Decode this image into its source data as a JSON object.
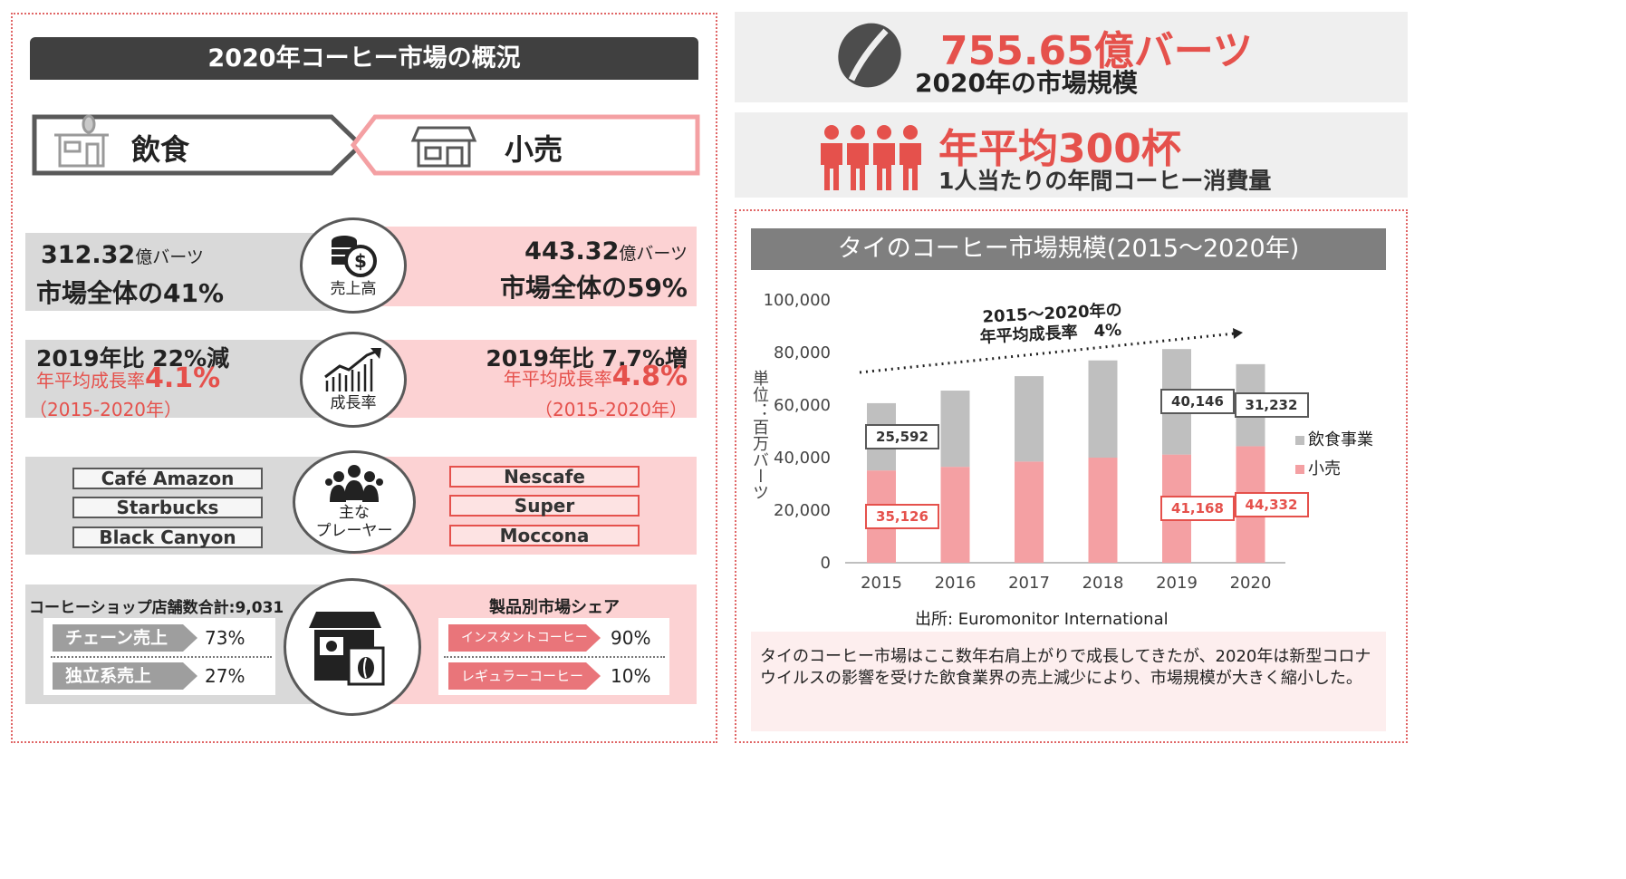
{
  "left_panel": {
    "title": "2020年コーヒー市場の概況",
    "category_food": "飲食",
    "category_retail": "小売",
    "sales": {
      "circle_label": "売上高",
      "food_value": "312.32",
      "food_unit": "億バーツ",
      "food_share": "市場全体の41%",
      "retail_value": "443.32",
      "retail_unit": "億バーツ",
      "retail_share": "市場全体の59%"
    },
    "growth": {
      "circle_label": "成長率",
      "food_yoy": "2019年比 22%減",
      "food_cagr_label": "年平均成長率",
      "food_cagr_value": "4.1%",
      "food_period": "（2015-2020年）",
      "retail_yoy": "2019年比 7.7%増",
      "retail_cagr_label": "年平均成長率",
      "retail_cagr_value": "4.8%",
      "retail_period": "（2015-2020年）"
    },
    "players": {
      "circle_label_1": "主な",
      "circle_label_2": "プレーヤー",
      "food_brands": [
        "Café Amazon",
        "Starbucks",
        "Black Canyon"
      ],
      "retail_brands": [
        "Nescafe",
        "Super",
        "Moccona"
      ]
    },
    "shops": {
      "title": "コーヒーショップ店舗数合計:9,031",
      "rows": [
        {
          "label": "チェーン売上",
          "value": "73%"
        },
        {
          "label": "独立系売上",
          "value": "27%"
        }
      ]
    },
    "products": {
      "title": "製品別市場シェア",
      "rows": [
        {
          "label": "インスタントコーヒー",
          "value": "90%"
        },
        {
          "label": "レギュラーコーヒー",
          "value": "10%"
        }
      ]
    }
  },
  "stats": {
    "market_value": "755.65億バーツ",
    "market_label": "2020年の市場規模",
    "cups_value": "年平均300杯",
    "cups_label": "1人当たりの年間コーヒー消費量"
  },
  "chart_panel": {
    "title": "タイのコーヒー市場規模(2015～2020年)",
    "ylabel": "単位：百万バーツ",
    "trend_line1": "2015～2020年の",
    "trend_line2": "年平均成長率　4%",
    "source": "出所: Euromonitor International",
    "description": "タイのコーヒー市場はここ数年右肩上がりで成長してきたが、2020年は新型コロナウイルスの影響を受けた飲食業界の売上減少により、市場規模が大きく縮小した。"
  },
  "chart_data": {
    "type": "bar",
    "stacked": true,
    "title": "タイのコーヒー市場規模(2015～2020年)",
    "ylabel": "単位：百万バーツ",
    "categories": [
      "2015",
      "2016",
      "2017",
      "2018",
      "2019",
      "2020"
    ],
    "ylim": [
      0,
      100000
    ],
    "yticks": [
      "0",
      "20,000",
      "40,000",
      "60,000",
      "80,000",
      "100,000"
    ],
    "series": [
      {
        "name": "小売",
        "color": "#f4a0a3",
        "values": [
          35126,
          36500,
          38500,
          40000,
          41168,
          44332
        ]
      },
      {
        "name": "飲食事業",
        "color": "#bfbfbf",
        "values": [
          25592,
          29000,
          32500,
          37000,
          40146,
          31232
        ]
      }
    ],
    "data_labels": [
      {
        "series": "飲食事業",
        "index": 0,
        "text": "25,592"
      },
      {
        "series": "小売",
        "index": 0,
        "text": "35,126"
      },
      {
        "series": "飲食事業",
        "index": 4,
        "text": "40,146"
      },
      {
        "series": "小売",
        "index": 4,
        "text": "41,168"
      },
      {
        "series": "飲食事業",
        "index": 5,
        "text": "31,232"
      },
      {
        "series": "小売",
        "index": 5,
        "text": "44,332"
      }
    ],
    "legend": [
      "飲食事業",
      "小売"
    ],
    "legend_position": "right",
    "grid": false
  },
  "colors": {
    "accent": "#e5514c",
    "pink": "#fcd2d3",
    "gray": "#d9d9d9",
    "dark": "#404040"
  }
}
